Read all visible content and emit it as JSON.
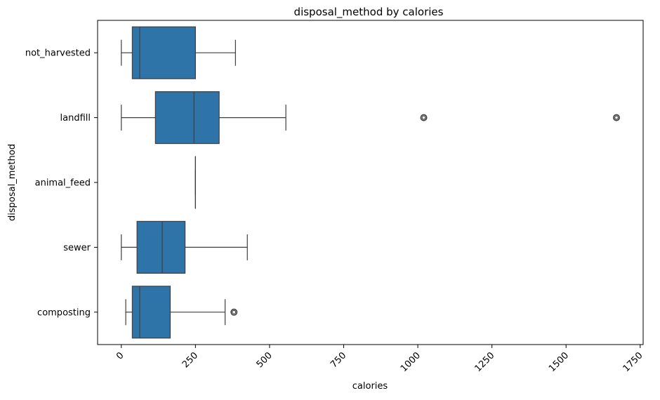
{
  "chart_data": {
    "type": "boxplot",
    "title": "disposal_method by calories",
    "xlabel": "calories",
    "ylabel": "disposal_method",
    "orientation": "horizontal",
    "xlim": [
      -80,
      1760
    ],
    "x_ticks": [
      0,
      250,
      500,
      750,
      1000,
      1250,
      1500,
      1750
    ],
    "x_tick_labels": [
      "0",
      "250",
      "500",
      "750",
      "1000",
      "1250",
      "1500",
      "1750"
    ],
    "x_tick_rotation_deg": 45,
    "grid": false,
    "box_color": "#2f74a9",
    "line_color": "#3f3f3f",
    "categories": [
      "not_harvested",
      "landfill",
      "animal_feed",
      "sewer",
      "composting"
    ],
    "boxes": [
      {
        "category": "not_harvested",
        "whisker_low": 0,
        "q1": 37,
        "median": 62,
        "q3": 250,
        "whisker_high": 385,
        "outliers": []
      },
      {
        "category": "landfill",
        "whisker_low": 0,
        "q1": 115,
        "median": 245,
        "q3": 330,
        "whisker_high": 555,
        "outliers": [
          1020,
          1670
        ]
      },
      {
        "category": "animal_feed",
        "whisker_low": 250,
        "q1": 250,
        "median": 250,
        "q3": 250,
        "whisker_high": 250,
        "outliers": []
      },
      {
        "category": "sewer",
        "whisker_low": 0,
        "q1": 53,
        "median": 138,
        "q3": 215,
        "whisker_high": 425,
        "outliers": []
      },
      {
        "category": "composting",
        "whisker_low": 15,
        "q1": 37,
        "median": 62,
        "q3": 165,
        "whisker_high": 350,
        "outliers": [
          380
        ]
      }
    ]
  }
}
